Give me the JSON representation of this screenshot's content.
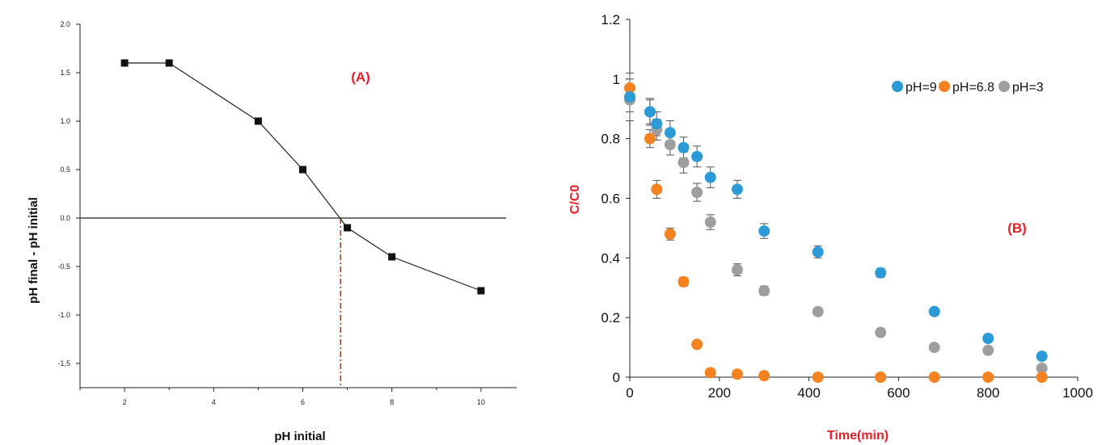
{
  "chart_data": [
    {
      "type": "line",
      "panel_label": "(A)",
      "xlabel": "pH initial",
      "ylabel": "pH final - pH initial",
      "xlim": [
        1,
        10.8
      ],
      "ylim": [
        -1.75,
        2.0
      ],
      "xticks": [
        2,
        4,
        6,
        8,
        10
      ],
      "yticks": [
        2.0,
        1.5,
        1.0,
        0.5,
        0.0,
        -0.5,
        -1.0,
        -1.5
      ],
      "ytick_labels": [
        "2.0",
        "1.5",
        "1.0",
        "0.5",
        "0.0",
        "-0.5",
        "-1.0",
        "-1,5"
      ],
      "series": [
        {
          "x": [
            2,
            3,
            5,
            6,
            7,
            8,
            10
          ],
          "y": [
            1.6,
            1.6,
            1.0,
            0.5,
            -0.1,
            -0.4,
            -0.75
          ]
        }
      ],
      "zero_line": 0,
      "pzc_marker_x": 6.85,
      "colors": {
        "line": "#222222",
        "marker": "#111111",
        "pzc": "#b22222",
        "annotation": "#e8202a"
      }
    },
    {
      "type": "scatter",
      "panel_label": "(B)",
      "xlabel": "Time(min)",
      "ylabel": "C/C0",
      "xlim": [
        0,
        1000
      ],
      "ylim": [
        0,
        1.2
      ],
      "xticks": [
        0,
        200,
        400,
        600,
        800,
        1000
      ],
      "yticks": [
        0,
        0.2,
        0.4,
        0.6,
        0.8,
        1,
        1.2
      ],
      "ytick_labels": [
        "0",
        "0.2",
        "0.4",
        "0.6",
        "0.8",
        "1",
        "1.2"
      ],
      "legend_position": "top-right",
      "series": [
        {
          "name": "pH=9",
          "color": "#2b9ad6",
          "x": [
            0,
            45,
            60,
            90,
            120,
            150,
            180,
            240,
            300,
            420,
            560,
            680,
            800,
            920
          ],
          "y": [
            0.94,
            0.89,
            0.85,
            0.82,
            0.77,
            0.74,
            0.67,
            0.63,
            0.49,
            0.42,
            0.35,
            0.22,
            0.13,
            0.07
          ],
          "err": [
            0.08,
            0.045,
            0.04,
            0.04,
            0.035,
            0.035,
            0.035,
            0.03,
            0.025,
            0.02,
            0.015,
            0.0,
            0.0,
            0.0
          ]
        },
        {
          "name": "pH=6.8",
          "color": "#f58220",
          "x": [
            0,
            45,
            60,
            90,
            120,
            150,
            180,
            240,
            300,
            420,
            560,
            680,
            800,
            920
          ],
          "y": [
            0.97,
            0.8,
            0.63,
            0.48,
            0.32,
            0.11,
            0.015,
            0.01,
            0.005,
            0.0,
            0.0,
            0.0,
            0.0,
            0.0
          ],
          "err": [
            0.03,
            0.03,
            0.03,
            0.02,
            0.015,
            0.0,
            0.0,
            0.0,
            0.0,
            0.0,
            0.0,
            0.0,
            0.0,
            0.0
          ]
        },
        {
          "name": "pH=3",
          "color": "#9e9e9e",
          "x": [
            0,
            45,
            60,
            90,
            120,
            150,
            180,
            240,
            300,
            420,
            560,
            680,
            800,
            920
          ],
          "y": [
            0.93,
            0.89,
            0.83,
            0.78,
            0.72,
            0.62,
            0.52,
            0.36,
            0.29,
            0.22,
            0.15,
            0.1,
            0.09,
            0.03
          ],
          "err": [
            0.04,
            0.04,
            0.035,
            0.035,
            0.035,
            0.03,
            0.025,
            0.02,
            0.015,
            0.0,
            0.0,
            0.0,
            0.0,
            0.0
          ]
        }
      ],
      "colors": {
        "axis_label": "#e8202a",
        "annotation": "#e8202a"
      }
    }
  ]
}
